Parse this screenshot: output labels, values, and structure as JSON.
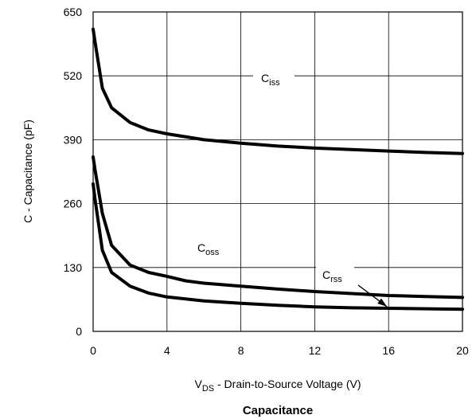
{
  "chart_data": {
    "type": "line",
    "title": "Capacitance",
    "xlabel": {
      "main": "V",
      "sub": "DS",
      "rest": " - Drain-to-Source Voltage (V)"
    },
    "ylabel": "C - Capacitance (pF)",
    "xlim": [
      0,
      20
    ],
    "ylim": [
      0,
      650
    ],
    "xticks": [
      "0",
      "4",
      "8",
      "12",
      "16",
      "20"
    ],
    "yticks": [
      "0",
      "130",
      "260",
      "390",
      "520",
      "650"
    ],
    "grid": true,
    "legend": "none",
    "series": [
      {
        "name": "Ciss",
        "label_main": "C",
        "label_sub": "iss",
        "x": [
          0,
          0.1,
          0.5,
          1,
          2,
          3,
          4,
          6,
          8,
          10,
          12,
          14,
          16,
          18,
          20
        ],
        "y": [
          615,
          590,
          495,
          455,
          425,
          410,
          402,
          390,
          383,
          377,
          373,
          370,
          367,
          364,
          362
        ]
      },
      {
        "name": "Coss",
        "label_main": "C",
        "label_sub": "oss",
        "x": [
          0,
          0.1,
          0.5,
          1,
          2,
          3,
          4,
          5,
          6,
          8,
          10,
          12,
          14,
          16,
          18,
          20
        ],
        "y": [
          355,
          330,
          240,
          175,
          135,
          120,
          112,
          103,
          98,
          92,
          86,
          81,
          77,
          73,
          71,
          69
        ]
      },
      {
        "name": "Crss",
        "label_main": "C",
        "label_sub": "rss",
        "x": [
          0,
          0.1,
          0.5,
          1,
          2,
          3,
          4,
          6,
          8,
          10,
          12,
          14,
          16,
          18,
          20
        ],
        "y": [
          300,
          270,
          165,
          120,
          92,
          78,
          70,
          62,
          57,
          53,
          50,
          48,
          47,
          46,
          45
        ]
      }
    ]
  }
}
